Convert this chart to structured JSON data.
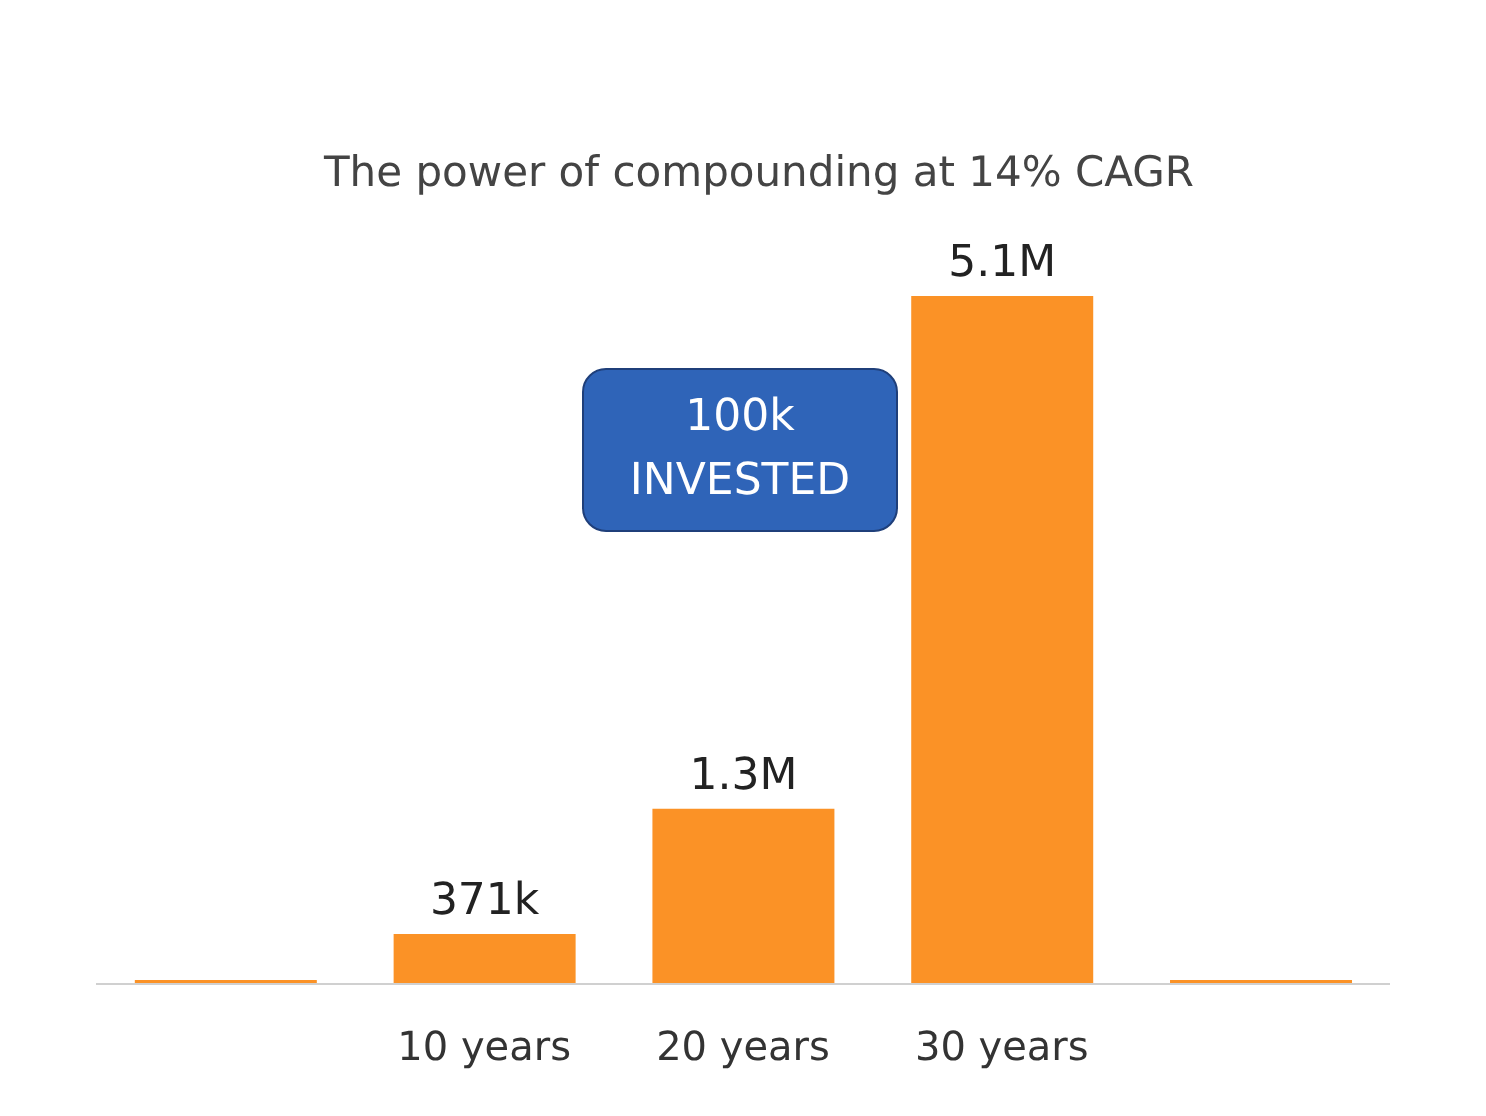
{
  "chart_data": {
    "type": "bar",
    "title": "The power of compounding at 14% CAGR",
    "categories": [
      null,
      "10 years",
      "20 years",
      "30 years",
      null
    ],
    "values": [
      0,
      371000,
      1300000,
      5100000,
      0
    ],
    "value_labels": [
      null,
      "371k",
      "1.3M",
      "5.1M",
      null
    ],
    "color": "#fb9226",
    "annotations": [
      "100k INVESTED"
    ],
    "grid": false
  }
}
